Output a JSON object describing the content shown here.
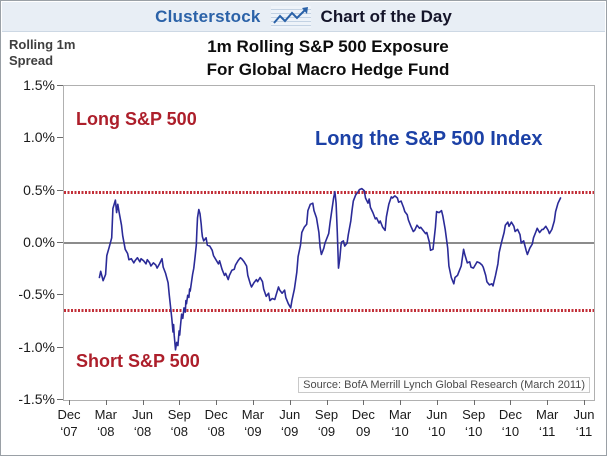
{
  "header": {
    "brand": "Clusterstock",
    "title": "Chart of the Day",
    "logo_icon": "line-chart-icon"
  },
  "y_axis_unit": {
    "line1": "Rolling 1m",
    "line2": "Spread"
  },
  "title": {
    "line1": "1m Rolling S&P 500 Exposure",
    "line2": "For Global Macro Hedge Fund"
  },
  "annotations": {
    "long_zone": "Long S&P 500",
    "short_zone": "Short S&P 500",
    "strategy": "Long the S&P 500 Index",
    "source": "Source: BofA Merrill Lynch Global Research (March 2011)"
  },
  "colors": {
    "header_bg": "#e8eef5",
    "brand_blue": "#2b62a8",
    "header_text": "#15152a",
    "title_text": "#0d0d0d",
    "annotation_red": "#ad1f2b",
    "annotation_blue": "#1c41a6",
    "series_line": "#2b2b98",
    "dotted_line": "#c22f38",
    "zero_line": "#8c8c8c"
  },
  "chart_data": {
    "type": "line",
    "title": "1m Rolling S&P 500 Exposure For Global Macro Hedge Fund",
    "xlabel": "",
    "ylabel": "Rolling 1m Spread",
    "ylim": [
      -1.5,
      1.5
    ],
    "grid": false,
    "legend": "none",
    "y_tick_labels": [
      "1.5%",
      "1.0%",
      "0.5%",
      "0.0%",
      "-0.5%",
      "-1.0%",
      "-1.5%"
    ],
    "y_tick_values": [
      1.5,
      1.0,
      0.5,
      0.0,
      -0.5,
      -1.0,
      -1.5
    ],
    "x_tick_months": [
      0,
      3,
      6,
      9,
      12,
      15,
      18,
      21,
      24,
      27,
      30,
      33,
      36,
      39,
      42
    ],
    "x_tick_labels": [
      [
        "Dec",
        "‘07"
      ],
      [
        "Mar",
        "‘08"
      ],
      [
        "Jun",
        "‘08"
      ],
      [
        "Sep",
        "‘08"
      ],
      [
        "Dec",
        "‘08"
      ],
      [
        "Mar",
        "‘09"
      ],
      [
        "Jun",
        "‘09"
      ],
      [
        "Sep",
        "‘09"
      ],
      [
        "Dec",
        "09"
      ],
      [
        "Mar",
        "‘10"
      ],
      [
        "Jun",
        "‘10"
      ],
      [
        "Sep",
        "‘10"
      ],
      [
        "Dec",
        "‘10"
      ],
      [
        "Mar",
        "‘11"
      ],
      [
        "Jun",
        "‘11"
      ]
    ],
    "reference_lines": {
      "upper_dotted": 0.49,
      "zero": 0.0,
      "lower_dotted": -0.64
    },
    "series": [
      {
        "name": "1m rolling S&P 500 exposure spread",
        "points": [
          [
            2.4,
            -0.33
          ],
          [
            2.5,
            -0.27
          ],
          [
            2.7,
            -0.36
          ],
          [
            2.9,
            -0.3
          ],
          [
            3.0,
            -0.12
          ],
          [
            3.2,
            -0.04
          ],
          [
            3.4,
            0.05
          ],
          [
            3.5,
            0.33
          ],
          [
            3.7,
            0.41
          ],
          [
            3.8,
            0.29
          ],
          [
            3.9,
            0.37
          ],
          [
            4.0,
            0.3
          ],
          [
            4.2,
            0.17
          ],
          [
            4.3,
            0.07
          ],
          [
            4.5,
            -0.06
          ],
          [
            4.7,
            -0.1
          ],
          [
            4.8,
            -0.16
          ],
          [
            5.0,
            -0.15
          ],
          [
            5.2,
            -0.19
          ],
          [
            5.3,
            -0.17
          ],
          [
            5.5,
            -0.14
          ],
          [
            5.7,
            -0.18
          ],
          [
            5.8,
            -0.15
          ],
          [
            6.0,
            -0.17
          ],
          [
            6.2,
            -0.2
          ],
          [
            6.3,
            -0.16
          ],
          [
            6.5,
            -0.19
          ],
          [
            6.6,
            -0.22
          ],
          [
            6.8,
            -0.19
          ],
          [
            7.0,
            -0.21
          ],
          [
            7.1,
            -0.24
          ],
          [
            7.3,
            -0.2
          ],
          [
            7.5,
            -0.15
          ],
          [
            7.6,
            -0.23
          ],
          [
            7.8,
            -0.29
          ],
          [
            8.0,
            -0.38
          ],
          [
            8.1,
            -0.5
          ],
          [
            8.3,
            -0.72
          ],
          [
            8.4,
            -0.85
          ],
          [
            8.45,
            -0.78
          ],
          [
            8.5,
            -0.88
          ],
          [
            8.6,
            -1.02
          ],
          [
            8.7,
            -0.95
          ],
          [
            8.8,
            -0.98
          ],
          [
            8.9,
            -0.84
          ],
          [
            8.95,
            -0.88
          ],
          [
            9.0,
            -0.8
          ],
          [
            9.1,
            -0.68
          ],
          [
            9.2,
            -0.72
          ],
          [
            9.3,
            -0.62
          ],
          [
            9.4,
            -0.66
          ],
          [
            9.45,
            -0.55
          ],
          [
            9.5,
            -0.58
          ],
          [
            9.6,
            -0.5
          ],
          [
            9.7,
            -0.52
          ],
          [
            9.75,
            -0.44
          ],
          [
            9.8,
            -0.46
          ],
          [
            9.9,
            -0.38
          ],
          [
            10.0,
            -0.3
          ],
          [
            10.1,
            -0.24
          ],
          [
            10.2,
            -0.13
          ],
          [
            10.3,
            -0.02
          ],
          [
            10.35,
            0.12
          ],
          [
            10.4,
            0.24
          ],
          [
            10.5,
            0.32
          ],
          [
            10.6,
            0.28
          ],
          [
            10.7,
            0.18
          ],
          [
            10.75,
            0.11
          ],
          [
            10.8,
            0.06
          ],
          [
            10.9,
            0.02
          ],
          [
            11.1,
            0.05
          ],
          [
            11.2,
            -0.02
          ],
          [
            11.4,
            -0.03
          ],
          [
            11.6,
            -0.07
          ],
          [
            11.7,
            -0.12
          ],
          [
            11.9,
            -0.16
          ],
          [
            12.1,
            -0.2
          ],
          [
            12.2,
            -0.17
          ],
          [
            12.4,
            -0.25
          ],
          [
            12.6,
            -0.31
          ],
          [
            12.7,
            -0.29
          ],
          [
            12.9,
            -0.35
          ],
          [
            13.0,
            -0.31
          ],
          [
            13.2,
            -0.26
          ],
          [
            13.4,
            -0.25
          ],
          [
            13.5,
            -0.21
          ],
          [
            13.7,
            -0.17
          ],
          [
            13.9,
            -0.14
          ],
          [
            14.0,
            -0.15
          ],
          [
            14.2,
            -0.18
          ],
          [
            14.4,
            -0.22
          ],
          [
            14.5,
            -0.31
          ],
          [
            14.7,
            -0.39
          ],
          [
            14.8,
            -0.42
          ],
          [
            15.0,
            -0.38
          ],
          [
            15.2,
            -0.35
          ],
          [
            15.3,
            -0.37
          ],
          [
            15.5,
            -0.33
          ],
          [
            15.7,
            -0.37
          ],
          [
            15.8,
            -0.44
          ],
          [
            16.0,
            -0.51
          ],
          [
            16.2,
            -0.48
          ],
          [
            16.3,
            -0.55
          ],
          [
            16.5,
            -0.53
          ],
          [
            16.7,
            -0.54
          ],
          [
            16.8,
            -0.5
          ],
          [
            17.0,
            -0.42
          ],
          [
            17.1,
            -0.45
          ],
          [
            17.3,
            -0.48
          ],
          [
            17.5,
            -0.45
          ],
          [
            17.6,
            -0.52
          ],
          [
            17.8,
            -0.58
          ],
          [
            18.0,
            -0.62
          ],
          [
            18.1,
            -0.55
          ],
          [
            18.3,
            -0.44
          ],
          [
            18.5,
            -0.28
          ],
          [
            18.6,
            -0.13
          ],
          [
            18.8,
            -0.02
          ],
          [
            18.9,
            0.1
          ],
          [
            19.1,
            0.15
          ],
          [
            19.3,
            0.18
          ],
          [
            19.4,
            0.31
          ],
          [
            19.6,
            0.37
          ],
          [
            19.8,
            0.38
          ],
          [
            19.9,
            0.31
          ],
          [
            20.1,
            0.24
          ],
          [
            20.3,
            0.1
          ],
          [
            20.4,
            -0.04
          ],
          [
            20.5,
            -0.11
          ],
          [
            20.7,
            -0.05
          ],
          [
            20.8,
            0.0
          ],
          [
            21.1,
            0.09
          ],
          [
            21.2,
            0.19
          ],
          [
            21.5,
            0.43
          ],
          [
            21.6,
            0.49
          ],
          [
            21.7,
            0.38
          ],
          [
            21.8,
            0.1
          ],
          [
            21.9,
            -0.24
          ],
          [
            22.0,
            -0.15
          ],
          [
            22.1,
            -0.02
          ],
          [
            22.15,
            0.01
          ],
          [
            22.3,
            0.02
          ],
          [
            22.4,
            -0.03
          ],
          [
            22.6,
            0.0
          ],
          [
            22.7,
            0.08
          ],
          [
            22.9,
            0.21
          ],
          [
            23.0,
            0.31
          ],
          [
            23.1,
            0.4
          ],
          [
            23.3,
            0.46
          ],
          [
            23.5,
            0.49
          ],
          [
            23.6,
            0.51
          ],
          [
            23.8,
            0.52
          ],
          [
            24.0,
            0.5
          ],
          [
            24.1,
            0.43
          ],
          [
            24.3,
            0.38
          ],
          [
            24.4,
            0.42
          ],
          [
            24.5,
            0.34
          ],
          [
            24.7,
            0.29
          ],
          [
            24.9,
            0.23
          ],
          [
            25.0,
            0.24
          ],
          [
            25.2,
            0.19
          ],
          [
            25.3,
            0.21
          ],
          [
            25.5,
            0.15
          ],
          [
            25.7,
            0.12
          ],
          [
            25.8,
            0.25
          ],
          [
            26.0,
            0.37
          ],
          [
            26.2,
            0.44
          ],
          [
            26.3,
            0.43
          ],
          [
            26.5,
            0.45
          ],
          [
            26.7,
            0.43
          ],
          [
            26.8,
            0.39
          ],
          [
            27.0,
            0.4
          ],
          [
            27.2,
            0.34
          ],
          [
            27.3,
            0.3
          ],
          [
            27.5,
            0.27
          ],
          [
            27.6,
            0.22
          ],
          [
            27.8,
            0.16
          ],
          [
            28.0,
            0.11
          ],
          [
            28.1,
            0.12
          ],
          [
            28.3,
            0.17
          ],
          [
            28.5,
            0.14
          ],
          [
            28.6,
            0.15
          ],
          [
            28.8,
            0.12
          ],
          [
            29.0,
            0.09
          ],
          [
            29.1,
            0.1
          ],
          [
            29.3,
            0.01
          ],
          [
            29.4,
            -0.07
          ],
          [
            29.6,
            -0.06
          ],
          [
            29.8,
            0.15
          ],
          [
            29.9,
            0.3
          ],
          [
            30.1,
            0.29
          ],
          [
            30.3,
            0.31
          ],
          [
            30.4,
            0.26
          ],
          [
            30.6,
            0.13
          ],
          [
            30.8,
            -0.05
          ],
          [
            30.9,
            -0.22
          ],
          [
            31.1,
            -0.33
          ],
          [
            31.3,
            -0.39
          ],
          [
            31.4,
            -0.33
          ],
          [
            31.6,
            -0.31
          ],
          [
            31.7,
            -0.28
          ],
          [
            31.9,
            -0.22
          ],
          [
            32.1,
            -0.06
          ],
          [
            32.2,
            -0.11
          ],
          [
            32.4,
            -0.19
          ],
          [
            32.6,
            -0.18
          ],
          [
            32.7,
            -0.23
          ],
          [
            32.9,
            -0.24
          ],
          [
            33.1,
            -0.2
          ],
          [
            33.2,
            -0.18
          ],
          [
            33.4,
            -0.19
          ],
          [
            33.6,
            -0.21
          ],
          [
            33.7,
            -0.23
          ],
          [
            33.9,
            -0.31
          ],
          [
            34.0,
            -0.37
          ],
          [
            34.2,
            -0.4
          ],
          [
            34.4,
            -0.39
          ],
          [
            34.5,
            -0.41
          ],
          [
            34.7,
            -0.31
          ],
          [
            34.9,
            -0.2
          ],
          [
            35.0,
            -0.09
          ],
          [
            35.2,
            0.01
          ],
          [
            35.4,
            0.1
          ],
          [
            35.5,
            0.17
          ],
          [
            35.7,
            0.2
          ],
          [
            35.8,
            0.16
          ],
          [
            36.0,
            0.2
          ],
          [
            36.2,
            0.16
          ],
          [
            36.3,
            0.11
          ],
          [
            36.5,
            0.13
          ],
          [
            36.7,
            0.08
          ],
          [
            36.8,
            0.0
          ],
          [
            37.0,
            0.02
          ],
          [
            37.2,
            -0.07
          ],
          [
            37.3,
            -0.11
          ],
          [
            37.5,
            -0.05
          ],
          [
            37.7,
            -0.01
          ],
          [
            37.8,
            0.05
          ],
          [
            38.0,
            0.11
          ],
          [
            38.1,
            0.14
          ],
          [
            38.3,
            0.1
          ],
          [
            38.5,
            0.13
          ],
          [
            38.6,
            0.13
          ],
          [
            38.8,
            0.16
          ],
          [
            39.0,
            0.12
          ],
          [
            39.1,
            0.09
          ],
          [
            39.3,
            0.13
          ],
          [
            39.5,
            0.21
          ],
          [
            39.6,
            0.3
          ],
          [
            39.8,
            0.38
          ],
          [
            40.0,
            0.43
          ]
        ]
      }
    ]
  }
}
